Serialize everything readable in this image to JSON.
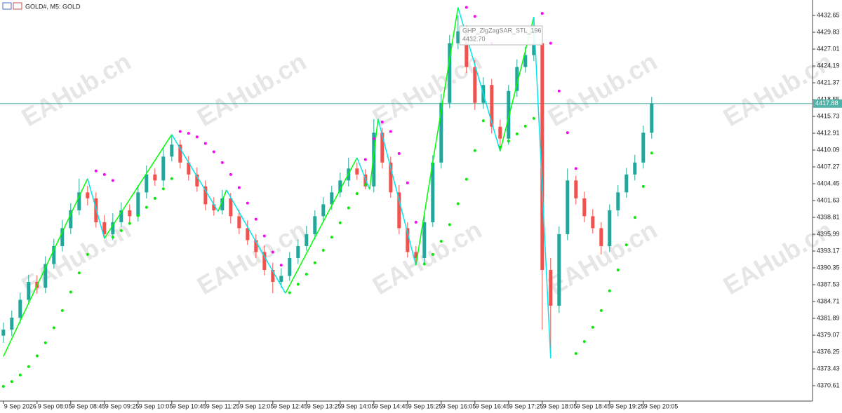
{
  "chart_data": {
    "type": "candlestick",
    "title": "GOLD#, M5: GOLD",
    "watermark": "EAHub.cn",
    "tooltip": {
      "name": "GHP_ZigZagSAR_STL_196",
      "value": "4432.70"
    },
    "up_color": "#26a69a",
    "down_color": "#ef5350",
    "xlim": [
      -0.8,
      192.2
    ],
    "ylim": [
      4368.26,
      4434.3
    ],
    "yticks": [
      4432.65,
      4429.83,
      4427.01,
      4424.19,
      4421.37,
      4418.55,
      4415.73,
      4412.91,
      4410.09,
      4407.27,
      4404.45,
      4401.63,
      4398.81,
      4395.99,
      4393.17,
      4390.35,
      4387.53,
      4384.71,
      4381.89,
      4379.07,
      4376.25,
      4373.43,
      4370.61
    ],
    "xticks": [
      {
        "value": 0,
        "label": "9 Sep 2026"
      },
      {
        "value": 8,
        "label": "9 Sep 08:05"
      },
      {
        "value": 16,
        "label": "9 Sep 08:45"
      },
      {
        "value": 24,
        "label": "9 Sep 09:25"
      },
      {
        "value": 32,
        "label": "9 Sep 10:05"
      },
      {
        "value": 40,
        "label": "9 Sep 10:45"
      },
      {
        "value": 48,
        "label": "9 Sep 11:25"
      },
      {
        "value": 56,
        "label": "9 Sep 12:05"
      },
      {
        "value": 64,
        "label": "9 Sep 12:45"
      },
      {
        "value": 72,
        "label": "9 Sep 13:25"
      },
      {
        "value": 80,
        "label": "9 Sep 14:05"
      },
      {
        "value": 88,
        "label": "9 Sep 14:45"
      },
      {
        "value": 96,
        "label": "9 Sep 15:25"
      },
      {
        "value": 104,
        "label": "9 Sep 16:05"
      },
      {
        "value": 112,
        "label": "9 Sep 16:45"
      },
      {
        "value": 120,
        "label": "9 Sep 17:25"
      },
      {
        "value": 128,
        "label": "9 Sep 18:05"
      },
      {
        "value": 136,
        "label": "9 Sep 18:45"
      },
      {
        "value": 144,
        "label": "9 Sep 19:25"
      },
      {
        "value": 152,
        "label": "9 Sep 20:05"
      }
    ],
    "current_price": 4417.88,
    "current_color": "#4fb3a9",
    "candles": {
      "x": [
        0,
        2,
        4,
        6,
        8,
        10,
        12,
        14,
        16,
        18,
        20,
        22,
        24,
        26,
        28,
        30,
        32,
        34,
        36,
        38,
        40,
        42,
        44,
        46,
        48,
        50,
        52,
        54,
        56,
        58,
        60,
        62,
        64,
        66,
        68,
        70,
        72,
        74,
        76,
        78,
        80,
        82,
        84,
        86,
        88,
        90,
        92,
        94,
        96,
        98,
        100,
        102,
        104,
        106,
        108,
        110,
        112,
        114,
        116,
        118,
        120,
        122,
        124,
        126,
        128,
        130,
        132,
        134,
        136,
        138,
        140,
        142,
        144,
        146,
        148,
        150,
        152,
        154
      ],
      "open": [
        4379,
        4380,
        4382,
        4385,
        4388,
        4387,
        4391,
        4394,
        4397,
        4400,
        4403,
        4402,
        4398,
        4396,
        4398,
        4400,
        4399,
        4403,
        4406,
        4405,
        4409,
        4411,
        4408,
        4406,
        4404,
        4401,
        4400,
        4402,
        4399,
        4397,
        4395,
        4393,
        4390,
        4388,
        4389,
        4392,
        4394,
        4396,
        4399,
        4401,
        4403,
        4405,
        4407,
        4406,
        4404,
        4413,
        4408,
        4403,
        4397,
        4393,
        4392,
        4398,
        4408,
        4418,
        4428,
        4430,
        4424,
        4418,
        4421,
        4414,
        4412,
        4420,
        4424,
        4426,
        4428,
        4390,
        4384,
        4396,
        4405,
        4402,
        4399,
        4397,
        4394,
        4400,
        4403,
        4406,
        4408,
        4413
      ],
      "high": [
        4381.2,
        4383.2,
        4386.2,
        4389.2,
        4389.1,
        4392.3,
        4395.2,
        4398.4,
        4401.2,
        4405.3,
        4404.1,
        4403.0,
        4399.2,
        4399.5,
        4401.3,
        4401.0,
        4404.2,
        4407.5,
        4407.0,
        4410.4,
        4412.7,
        4411.8,
        4409.1,
        4407.2,
        4405.0,
        4402.2,
        4403.4,
        4402.9,
        4400.1,
        4398.3,
        4396.0,
        4394.1,
        4391.2,
        4390.3,
        4393.0,
        4395.1,
        4397.4,
        4400.0,
        4402.2,
        4404.1,
        4406.3,
        4408.8,
        4408.0,
        4406.9,
        4415.3,
        4413.8,
        4409.0,
        4404.2,
        4398.0,
        4394.0,
        4399.1,
        4409.2,
        4419.5,
        4429.4,
        4432.7,
        4431.0,
        4425.2,
        4422.3,
        4422.0,
        4415.2,
        4421.0,
        4425.3,
        4427.4,
        4432.4,
        4429.0,
        4392.0,
        4397.3,
        4407.0,
        4405.8,
        4403.1,
        4400.2,
        4398.0,
        4401.0,
        4404.2,
        4407.1,
        4409.3,
        4414.2,
        4419.0
      ],
      "low": [
        4377.8,
        4378.9,
        4381.0,
        4384.2,
        4386.0,
        4386.1,
        4390.2,
        4393.1,
        4396.0,
        4399.2,
        4400.8,
        4397.1,
        4395.3,
        4395.0,
        4397.2,
        4398.0,
        4398.1,
        4402.0,
        4404.1,
        4404.0,
        4408.2,
        4407.0,
        4405.0,
        4403.1,
        4400.0,
        4399.1,
        4399.3,
        4397.8,
        4396.0,
        4394.2,
        4392.0,
        4389.1,
        4386.1,
        4387.0,
        4388.2,
        4391.0,
        4393.2,
        4395.1,
        4398.0,
        4400.1,
        4402.2,
        4404.0,
        4405.1,
        4403.5,
        4403.0,
        4407.0,
        4402.1,
        4396.0,
        4392.1,
        4390.8,
        4391.0,
        4397.2,
        4407.0,
        4417.1,
        4427.0,
        4423.0,
        4416.8,
        4417.0,
        4412.9,
        4409.9,
        4411.0,
        4419.0,
        4423.1,
        4425.0,
        4380.0,
        4375.2,
        4382.8,
        4395.0,
        4401.0,
        4398.0,
        4396.1,
        4392.6,
        4393.0,
        4399.0,
        4402.1,
        4405.0,
        4407.0,
        4412.0
      ],
      "close": [
        4380,
        4382,
        4385,
        4388,
        4387,
        4391,
        4394,
        4397,
        4400,
        4403,
        4402,
        4398,
        4396,
        4398,
        4400,
        4399,
        4403,
        4406,
        4405,
        4409,
        4411,
        4408,
        4406,
        4404,
        4401,
        4400,
        4402,
        4399,
        4397,
        4395,
        4393,
        4390,
        4388,
        4389,
        4392,
        4394,
        4396,
        4399,
        4401,
        4403,
        4405,
        4407,
        4406,
        4404,
        4413,
        4408,
        4403,
        4397,
        4393,
        4392,
        4398,
        4408,
        4418,
        4428,
        4430,
        4424,
        4418,
        4421,
        4414,
        4412,
        4420,
        4424,
        4426,
        4428,
        4390,
        4384,
        4396,
        4405,
        4402,
        4399,
        4397,
        4394,
        4400,
        4403,
        4406,
        4408,
        4413,
        4417.9
      ]
    },
    "zigzag": {
      "up_color": "#00ff00",
      "down_color": "#00e5ee",
      "x": [
        0,
        20,
        24,
        40,
        51,
        53,
        67,
        84,
        87,
        89,
        98,
        108,
        118,
        126,
        130
      ],
      "values": [
        4375.5,
        4405.3,
        4395.3,
        4412.7,
        4399.8,
        4403.4,
        4386.1,
        4408.8,
        4403.5,
        4415.3,
        4390.8,
        4434.0,
        4409.9,
        4432.4,
        4375.2
      ]
    },
    "sar": [
      {
        "color": "#00ee00",
        "x": [
          0,
          2,
          4,
          6,
          8,
          10,
          12,
          14,
          16,
          18,
          20,
          26,
          28,
          30,
          32,
          34,
          36,
          38,
          40,
          68,
          70,
          72,
          74,
          76,
          78,
          80,
          82,
          84,
          86,
          100,
          102,
          104,
          106,
          108,
          110,
          112,
          114,
          118,
          120,
          122,
          124,
          126,
          136,
          138,
          140,
          142,
          144,
          146,
          148,
          150,
          152,
          154
        ],
        "values": [
          4370.5,
          4371.3,
          4372.4,
          4373.8,
          4375.6,
          4377.8,
          4380.3,
          4383.2,
          4386.3,
          4389.5,
          4392.6,
          4395.5,
          4396.6,
          4397.8,
          4399.1,
          4400.5,
          4402.0,
          4403.6,
          4405.3,
          4386.2,
          4387.6,
          4389.3,
          4391.2,
          4393.3,
          4395.5,
          4397.9,
          4400.4,
          4402.8,
          4404.3,
          4391.0,
          4392.6,
          4394.8,
          4397.6,
          4401.1,
          4405.2,
          4410.0,
          4415.0,
          4410.6,
          4411.6,
          4412.8,
          4414.1,
          4415.4,
          4376.0,
          4378.0,
          4380.4,
          4383.2,
          4386.5,
          4390.0,
          4394.2,
          4398.8,
          4404.0,
          4409.6
        ]
      },
      {
        "color": "#ff00ff",
        "x": [
          22,
          24,
          26,
          42,
          44,
          46,
          48,
          50,
          52,
          54,
          56,
          58,
          60,
          62,
          64,
          66,
          86,
          88,
          90,
          92,
          94,
          96,
          98,
          110,
          112,
          114,
          116,
          128,
          130,
          132,
          134,
          136
        ],
        "values": [
          4406.6,
          4406.0,
          4405.0,
          4413.2,
          4412.9,
          4412.3,
          4411.2,
          4409.8,
          4408.0,
          4406.0,
          4403.8,
          4401.2,
          4398.5,
          4395.7,
          4393.0,
          4390.8,
          4408.5,
          4412.0,
          4414.8,
          4413.2,
          4409.5,
          4404.6,
          4398.0,
          4434.0,
          4432.5,
          4430.4,
          4428.0,
          4433.0,
          4428.0,
          4420.0,
          4413.0,
          4407.0
        ]
      }
    ]
  }
}
